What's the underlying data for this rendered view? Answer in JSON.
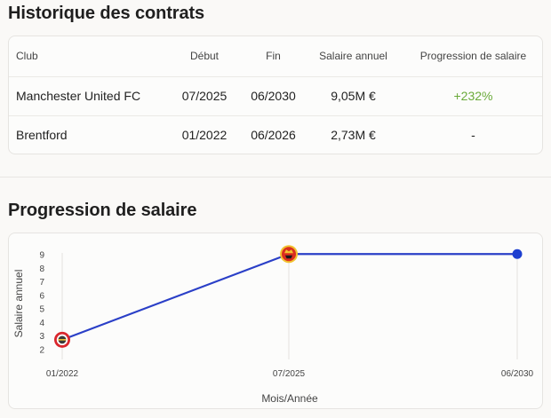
{
  "contracts": {
    "title": "Historique des contrats",
    "columns": [
      "Club",
      "Début",
      "Fin",
      "Salaire annuel",
      "Progression de salaire"
    ],
    "rows": [
      {
        "club": "Manchester United FC",
        "start": "07/2025",
        "end": "06/2030",
        "salary": "9,05M €",
        "progression": "+232%"
      },
      {
        "club": "Brentford",
        "start": "01/2022",
        "end": "06/2026",
        "salary": "2,73M €",
        "progression": "-"
      }
    ]
  },
  "progress": {
    "title": "Progression de salaire"
  },
  "colors": {
    "line": "#2a3fc7",
    "positive": "#6aaa3a",
    "end_dot": "#1d3fd0",
    "brentford_badge": "#d9262c",
    "manutd_badge": "#da2d1f"
  },
  "chart_data": {
    "type": "line",
    "xlabel": "Mois/Année",
    "ylabel": "Salaire annuel",
    "ylim": [
      2,
      9
    ],
    "yticks": [
      "2",
      "3",
      "4",
      "5",
      "6",
      "7",
      "8",
      "9"
    ],
    "x_tick_labels": [
      "01/2022",
      "07/2025",
      "06/2030"
    ],
    "grid": "vertical",
    "series": [
      {
        "points": [
          {
            "x": "01/2022",
            "y": 2.73,
            "marker": "brentford-badge"
          },
          {
            "x": "07/2025",
            "y": 9.05,
            "marker": "manutd-badge"
          },
          {
            "x": "06/2030",
            "y": 9.05,
            "marker": "dot"
          }
        ]
      }
    ]
  }
}
